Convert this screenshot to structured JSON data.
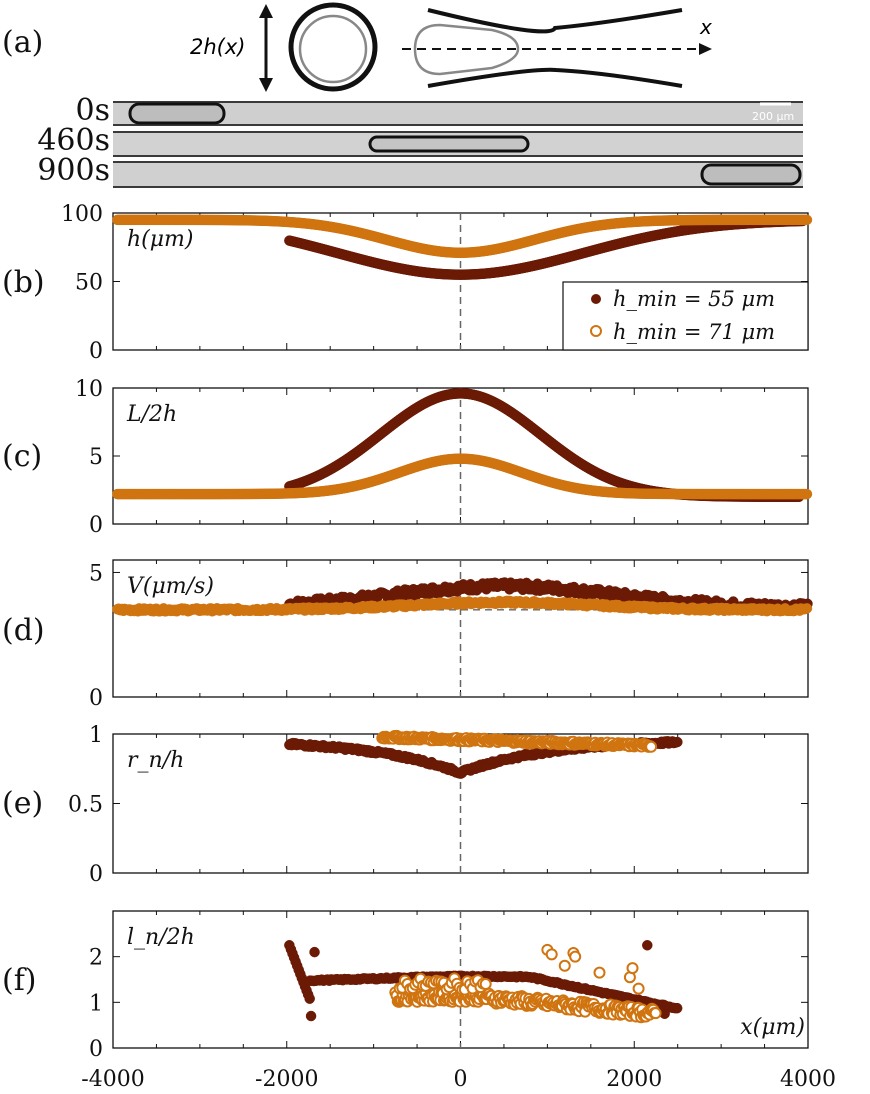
{
  "colors": {
    "dark": "#6b1a05",
    "orange": "#d07410",
    "axis": "#111111",
    "dash": "#666666"
  },
  "panel_a": {
    "label": "(a)",
    "axis_text": "2h(x)",
    "x_text": "x",
    "scale_text": "200 μm",
    "time_labels": [
      "0s",
      "460s",
      "900s"
    ]
  },
  "legend": {
    "dark": "h_min = 55 μm",
    "orange": "h_min = 71 μm"
  },
  "chart_data": [
    {
      "id": "b",
      "label": "(b)",
      "type": "scatter",
      "ylabel": "h(μm)",
      "xlim": [
        -4000,
        4000
      ],
      "ylim": [
        0,
        100
      ],
      "yticks": [
        0,
        50,
        100
      ],
      "ytick_labels": [
        "0",
        "50",
        "100"
      ],
      "series": [
        {
          "name": "h_min = 55 μm",
          "curve": "h",
          "params": {
            "x0": -1970,
            "x1": 3950,
            "base": 55,
            "amp": 40,
            "center": 0,
            "sigma": 2000
          }
        },
        {
          "name": "h_min = 71 μm",
          "curve": "h",
          "params": {
            "x0": -3950,
            "x1": 4000,
            "base": 71,
            "amp": 24,
            "center": 0,
            "sigma": 1200
          }
        }
      ]
    },
    {
      "id": "c",
      "label": "(c)",
      "type": "scatter",
      "ylabel": "L/2h",
      "xlim": [
        -4000,
        4000
      ],
      "ylim": [
        0,
        10
      ],
      "yticks": [
        0,
        5,
        10
      ],
      "ytick_labels": [
        "0",
        "5",
        "10"
      ],
      "series": [
        {
          "name": "h_min = 55 μm",
          "curve": "bell",
          "params": {
            "x0": -1970,
            "x1": 3900,
            "base": 2.0,
            "amp": 7.6,
            "center": 0,
            "sigma": 1300
          }
        },
        {
          "name": "h_min = 71 μm",
          "curve": "bell",
          "params": {
            "x0": -3950,
            "x1": 4000,
            "base": 2.2,
            "amp": 2.6,
            "center": 0,
            "sigma": 1000
          }
        }
      ]
    },
    {
      "id": "d",
      "label": "(d)",
      "type": "scatter",
      "ylabel": "V(μm/s)",
      "xlim": [
        -4000,
        4000
      ],
      "ylim": [
        0,
        5.5
      ],
      "yticks": [
        0,
        5
      ],
      "ytick_labels": [
        "0",
        "5"
      ],
      "hline": 3.5,
      "series": [
        {
          "name": "h_min = 55 μm",
          "curve": "bell",
          "params": {
            "x0": -1970,
            "x1": 4000,
            "base": 3.6,
            "amp": 0.85,
            "center": 500,
            "sigma": 1800,
            "noise": 0.15
          }
        },
        {
          "name": "h_min = 71 μm",
          "curve": "bell",
          "params": {
            "x0": -3950,
            "x1": 4000,
            "base": 3.5,
            "amp": 0.3,
            "center": 500,
            "sigma": 1500,
            "noise": 0.06
          }
        }
      ]
    },
    {
      "id": "e",
      "label": "(e)",
      "type": "scatter",
      "ylabel": "r_n/h",
      "xlim": [
        -4000,
        4000
      ],
      "ylim": [
        0,
        1
      ],
      "yticks": [
        0,
        0.5,
        1
      ],
      "ytick_labels": [
        "0",
        "0.5",
        "1"
      ],
      "series": [
        {
          "name": "h_min = 55 μm",
          "curve": "vee",
          "params": {
            "x0": -1970,
            "x1": 2500,
            "base": 0.72,
            "amp": 0.24,
            "center": 0,
            "sigma": 1000,
            "noise": 0.01
          }
        },
        {
          "name": "h_min = 71 μm",
          "curve": "flat",
          "params": {
            "x0": -900,
            "x1": 2200,
            "base": 0.96,
            "slope": -2e-05,
            "noise": 0.012
          }
        }
      ]
    },
    {
      "id": "f",
      "label": "(f)",
      "type": "scatter",
      "ylabel": "l_n/2h",
      "xlabel": "x(μm)",
      "xlim": [
        -4000,
        4000
      ],
      "ylim": [
        0,
        3
      ],
      "yticks": [
        0,
        1,
        2
      ],
      "ytick_labels": [
        "0",
        "1",
        "2"
      ],
      "xticks": [
        -4000,
        -2000,
        0,
        2000,
        4000
      ],
      "xtick_labels": [
        "-4000",
        "-2000",
        "0",
        "2000",
        "4000"
      ],
      "series": [
        {
          "name": "h_min = 55 μm",
          "curve": "lnd",
          "params": {
            "x0": -1970,
            "x1": 2500
          }
        },
        {
          "name": "h_min = 71 μm",
          "curve": "lno",
          "params": {
            "x0": -750,
            "x1": 2250
          }
        }
      ]
    }
  ]
}
